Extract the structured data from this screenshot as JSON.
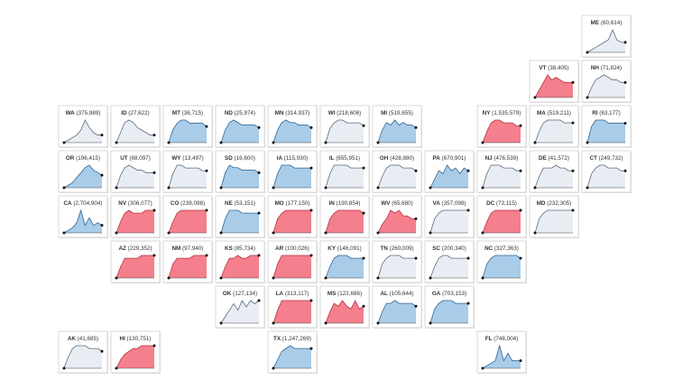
{
  "palette": {
    "blue": {
      "fill": "#a9cce9",
      "line": "#2f6592"
    },
    "red": {
      "fill": "#f47f8d",
      "line": "#b8303f"
    },
    "gray": {
      "fill": "#e8edf4",
      "line": "#5a6a7a"
    }
  },
  "tiles": [
    {
      "abbr": "ME",
      "count": "(60,614)",
      "col": 10,
      "row": 0,
      "color": "gray",
      "curve": [
        0,
        1,
        2,
        3,
        4,
        5,
        9,
        5,
        4,
        4
      ]
    },
    {
      "abbr": "VT",
      "count": "(38,405)",
      "col": 9,
      "row": 1,
      "color": "red",
      "curve": [
        0,
        3,
        6,
        9,
        7,
        8,
        7,
        6,
        6,
        6
      ]
    },
    {
      "abbr": "NH",
      "count": "(71,824)",
      "col": 10,
      "row": 1,
      "color": "gray",
      "curve": [
        0,
        4,
        7,
        8,
        9,
        8,
        7,
        7,
        6,
        6
      ]
    },
    {
      "abbr": "WA",
      "count": "(375,989)",
      "col": 0,
      "row": 2,
      "color": "gray",
      "curve": [
        0,
        1,
        2,
        3,
        5,
        9,
        6,
        4,
        3,
        3
      ]
    },
    {
      "abbr": "ID",
      "count": "(27,622)",
      "col": 1,
      "row": 2,
      "color": "gray",
      "curve": [
        0,
        4,
        8,
        9,
        8,
        6,
        5,
        4,
        3,
        3
      ]
    },
    {
      "abbr": "MT",
      "count": "(36,715)",
      "col": 2,
      "row": 2,
      "color": "blue",
      "curve": [
        0,
        4,
        6,
        7,
        7,
        6,
        6,
        6,
        6,
        5
      ]
    },
    {
      "abbr": "ND",
      "count": "(25,974)",
      "col": 3,
      "row": 2,
      "color": "blue",
      "curve": [
        0,
        5,
        8,
        9,
        8,
        7,
        7,
        7,
        7,
        6
      ]
    },
    {
      "abbr": "MN",
      "count": "(314,937)",
      "col": 4,
      "row": 2,
      "color": "blue",
      "curve": [
        0,
        5,
        8,
        9,
        8,
        8,
        7,
        7,
        7,
        6
      ]
    },
    {
      "abbr": "WI",
      "count": "(218,606)",
      "col": 5,
      "row": 2,
      "color": "gray",
      "curve": [
        0,
        5,
        7,
        8,
        8,
        7,
        7,
        7,
        7,
        6
      ]
    },
    {
      "abbr": "MI",
      "count": "(519,655)",
      "col": 6,
      "row": 2,
      "color": "blue",
      "curve": [
        0,
        5,
        8,
        7,
        9,
        7,
        8,
        7,
        7,
        6
      ]
    },
    {
      "abbr": "NY",
      "count": "(1,535,579)",
      "col": 8,
      "row": 2,
      "color": "red",
      "curve": [
        0,
        4,
        7,
        8,
        8,
        7,
        7,
        7,
        6,
        6
      ]
    },
    {
      "abbr": "MA",
      "count": "(519,211)",
      "col": 9,
      "row": 2,
      "color": "gray",
      "curve": [
        0,
        4,
        7,
        8,
        8,
        8,
        8,
        7,
        7,
        7
      ]
    },
    {
      "abbr": "RI",
      "count": "(63,177)",
      "col": 10,
      "row": 2,
      "color": "blue",
      "curve": [
        0,
        5,
        7,
        7,
        7,
        6,
        6,
        6,
        6,
        6
      ]
    },
    {
      "abbr": "OR",
      "count": "(196,415)",
      "col": 0,
      "row": 3,
      "color": "blue",
      "curve": [
        0,
        1,
        2,
        4,
        6,
        8,
        9,
        7,
        6,
        5
      ]
    },
    {
      "abbr": "UT",
      "count": "(68,097)",
      "col": 1,
      "row": 3,
      "color": "gray",
      "curve": [
        0,
        5,
        8,
        9,
        8,
        7,
        7,
        6,
        6,
        6
      ]
    },
    {
      "abbr": "WY",
      "count": "(13,497)",
      "col": 2,
      "row": 3,
      "color": "gray",
      "curve": [
        0,
        5,
        8,
        8,
        7,
        7,
        7,
        7,
        6,
        6
      ]
    },
    {
      "abbr": "SD",
      "count": "(16,600)",
      "col": 3,
      "row": 3,
      "color": "blue",
      "curve": [
        0,
        6,
        9,
        8,
        8,
        7,
        7,
        7,
        7,
        6
      ]
    },
    {
      "abbr": "IA",
      "count": "(115,930)",
      "col": 4,
      "row": 3,
      "color": "blue",
      "curve": [
        0,
        5,
        8,
        8,
        8,
        7,
        7,
        7,
        7,
        7
      ]
    },
    {
      "abbr": "IL",
      "count": "(655,951)",
      "col": 5,
      "row": 3,
      "color": "gray",
      "curve": [
        0,
        5,
        8,
        8,
        8,
        8,
        7,
        7,
        7,
        7
      ]
    },
    {
      "abbr": "OH",
      "count": "(428,880)",
      "col": 6,
      "row": 3,
      "color": "gray",
      "curve": [
        0,
        4,
        7,
        8,
        8,
        8,
        7,
        7,
        7,
        6
      ]
    },
    {
      "abbr": "PA",
      "count": "(670,901)",
      "col": 7,
      "row": 3,
      "color": "blue",
      "curve": [
        0,
        3,
        6,
        5,
        8,
        6,
        7,
        5,
        7,
        6
      ]
    },
    {
      "abbr": "NJ",
      "count": "(476,539)",
      "col": 8,
      "row": 3,
      "color": "gray",
      "curve": [
        0,
        5,
        8,
        8,
        8,
        7,
        7,
        7,
        6,
        6
      ]
    },
    {
      "abbr": "DE",
      "count": "(41,572)",
      "col": 9,
      "row": 3,
      "color": "gray",
      "curve": [
        0,
        4,
        7,
        7,
        7,
        8,
        7,
        7,
        6,
        6
      ]
    },
    {
      "abbr": "CT",
      "count": "(249,732)",
      "col": 10,
      "row": 3,
      "color": "gray",
      "curve": [
        0,
        5,
        7,
        8,
        8,
        7,
        7,
        7,
        6,
        6
      ]
    },
    {
      "abbr": "CA",
      "count": "(2,704,904)",
      "col": 0,
      "row": 4,
      "color": "blue",
      "curve": [
        0,
        1,
        2,
        4,
        9,
        3,
        6,
        3,
        4,
        3
      ]
    },
    {
      "abbr": "NV",
      "count": "(306,077)",
      "col": 1,
      "row": 4,
      "color": "red",
      "curve": [
        0,
        4,
        7,
        8,
        7,
        7,
        7,
        8,
        8,
        8
      ]
    },
    {
      "abbr": "CO",
      "count": "(239,098)",
      "col": 2,
      "row": 4,
      "color": "red",
      "curve": [
        0,
        4,
        7,
        8,
        8,
        8,
        8,
        8,
        8,
        8
      ]
    },
    {
      "abbr": "NE",
      "count": "(53,151)",
      "col": 3,
      "row": 4,
      "color": "blue",
      "curve": [
        0,
        5,
        8,
        8,
        8,
        7,
        7,
        7,
        7,
        7
      ]
    },
    {
      "abbr": "MO",
      "count": "(177,150)",
      "col": 4,
      "row": 4,
      "color": "red",
      "curve": [
        0,
        5,
        7,
        8,
        8,
        8,
        8,
        8,
        8,
        8
      ]
    },
    {
      "abbr": "IN",
      "count": "(190,854)",
      "col": 5,
      "row": 4,
      "color": "red",
      "curve": [
        0,
        5,
        7,
        8,
        8,
        8,
        8,
        8,
        8,
        7
      ]
    },
    {
      "abbr": "WV",
      "count": "(65,680)",
      "col": 6,
      "row": 4,
      "color": "red",
      "curve": [
        0,
        3,
        5,
        8,
        7,
        8,
        6,
        6,
        5,
        5
      ]
    },
    {
      "abbr": "VA",
      "count": "(357,098)",
      "col": 7,
      "row": 4,
      "color": "gray",
      "curve": [
        0,
        5,
        7,
        8,
        8,
        8,
        8,
        8,
        8,
        8
      ]
    },
    {
      "abbr": "DC",
      "count": "(73,115)",
      "col": 8,
      "row": 4,
      "color": "red",
      "curve": [
        0,
        4,
        7,
        8,
        8,
        8,
        8,
        8,
        8,
        8
      ]
    },
    {
      "abbr": "MD",
      "count": "(232,305)",
      "col": 9,
      "row": 4,
      "color": "gray",
      "curve": [
        0,
        5,
        7,
        8,
        8,
        8,
        8,
        8,
        8,
        8
      ]
    },
    {
      "abbr": "AZ",
      "count": "(229,352)",
      "col": 1,
      "row": 5,
      "color": "red",
      "curve": [
        0,
        4,
        7,
        7,
        7,
        7,
        8,
        8,
        8,
        8
      ]
    },
    {
      "abbr": "NM",
      "count": "(97,940)",
      "col": 2,
      "row": 5,
      "color": "red",
      "curve": [
        0,
        5,
        7,
        7,
        7,
        7,
        8,
        8,
        8,
        8
      ]
    },
    {
      "abbr": "KS",
      "count": "(85,734)",
      "col": 3,
      "row": 5,
      "color": "red",
      "curve": [
        0,
        4,
        7,
        7,
        8,
        7,
        7,
        8,
        8,
        8
      ]
    },
    {
      "abbr": "AR",
      "count": "(100,026)",
      "col": 4,
      "row": 5,
      "color": "red",
      "curve": [
        0,
        5,
        8,
        8,
        8,
        8,
        8,
        8,
        8,
        8
      ]
    },
    {
      "abbr": "KY",
      "count": "(146,091)",
      "col": 5,
      "row": 5,
      "color": "blue",
      "curve": [
        0,
        4,
        7,
        8,
        8,
        8,
        7,
        7,
        7,
        7
      ]
    },
    {
      "abbr": "TN",
      "count": "(260,009)",
      "col": 6,
      "row": 5,
      "color": "gray",
      "curve": [
        0,
        5,
        7,
        8,
        8,
        8,
        7,
        7,
        7,
        7
      ]
    },
    {
      "abbr": "SC",
      "count": "(200,340)",
      "col": 7,
      "row": 5,
      "color": "gray",
      "curve": [
        0,
        4,
        7,
        8,
        8,
        7,
        7,
        7,
        7,
        7
      ]
    },
    {
      "abbr": "NC",
      "count": "(327,363)",
      "col": 8,
      "row": 5,
      "color": "blue",
      "curve": [
        0,
        5,
        7,
        8,
        8,
        8,
        8,
        8,
        8,
        7
      ]
    },
    {
      "abbr": "OK",
      "count": "(127,134)",
      "col": 3,
      "row": 6,
      "color": "gray",
      "curve": [
        0,
        2,
        4,
        6,
        4,
        7,
        5,
        7,
        6,
        7
      ]
    },
    {
      "abbr": "LA",
      "count": "(313,117)",
      "col": 4,
      "row": 6,
      "color": "red",
      "curve": [
        0,
        4,
        7,
        7,
        7,
        7,
        7,
        7,
        7,
        7
      ]
    },
    {
      "abbr": "MS",
      "count": "(122,686)",
      "col": 5,
      "row": 6,
      "color": "red",
      "curve": [
        0,
        4,
        7,
        6,
        8,
        6,
        5,
        8,
        5,
        6
      ]
    },
    {
      "abbr": "AL",
      "count": "(105,644)",
      "col": 6,
      "row": 6,
      "color": "blue",
      "curve": [
        0,
        4,
        7,
        7,
        8,
        7,
        7,
        7,
        7,
        6
      ]
    },
    {
      "abbr": "GA",
      "count": "(703,153)",
      "col": 7,
      "row": 6,
      "color": "blue",
      "curve": [
        0,
        5,
        7,
        8,
        8,
        8,
        7,
        7,
        7,
        7
      ]
    },
    {
      "abbr": "AK",
      "count": "(41,685)",
      "col": 0,
      "row": 7,
      "color": "gray",
      "curve": [
        0,
        4,
        7,
        8,
        8,
        8,
        7,
        7,
        7,
        6
      ]
    },
    {
      "abbr": "HI",
      "count": "(130,751)",
      "col": 1,
      "row": 7,
      "color": "red",
      "curve": [
        0,
        3,
        5,
        6,
        7,
        7,
        8,
        8,
        8,
        8
      ]
    },
    {
      "abbr": "TX",
      "count": "(1,247,269)",
      "col": 4,
      "row": 7,
      "color": "blue",
      "curve": [
        0,
        3,
        6,
        7,
        8,
        7,
        7,
        7,
        7,
        7
      ]
    },
    {
      "abbr": "FL",
      "count": "(748,004)",
      "col": 8,
      "row": 7,
      "color": "blue",
      "curve": [
        0,
        1,
        2,
        3,
        9,
        3,
        6,
        3,
        3,
        3
      ]
    }
  ]
}
